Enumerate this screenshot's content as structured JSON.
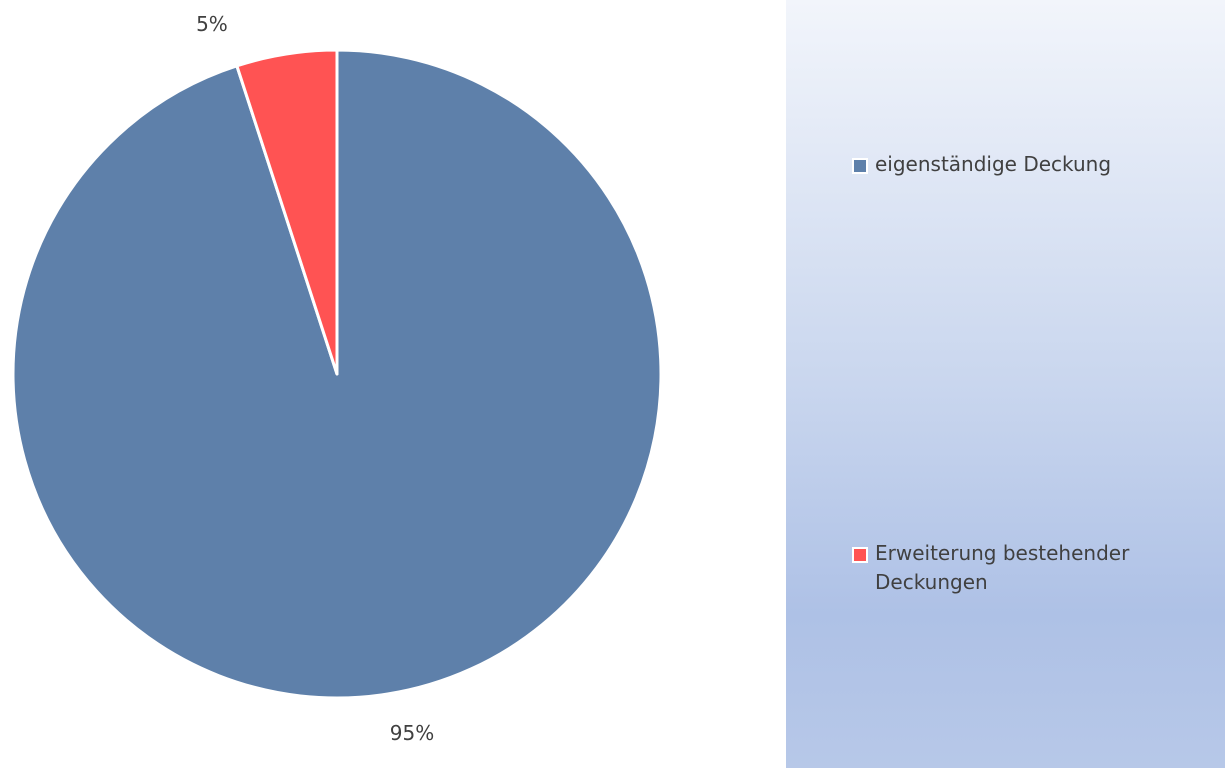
{
  "chart_data": {
    "type": "pie",
    "categories": [
      "eigenständige Deckung",
      "Erweiterung bestehender Deckungen"
    ],
    "values": [
      95,
      5
    ],
    "data_labels": [
      "95%",
      "5%"
    ],
    "colors": [
      "#5e80aa",
      "#ff5353"
    ],
    "start_angle": "12 o'clock, clockwise",
    "legend_position": "right"
  },
  "legend": {
    "items": [
      {
        "label": "eigenständige Deckung",
        "color": "#5e80aa"
      },
      {
        "label": "Erweiterung bestehender Deckungen",
        "color": "#ff5353"
      }
    ]
  }
}
